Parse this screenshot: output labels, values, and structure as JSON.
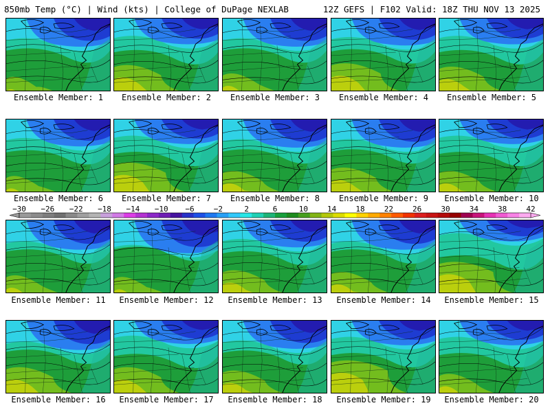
{
  "header": {
    "left": "850mb Temp (°C) | Wind (kts) | College of DuPage NEXLAB",
    "right": "12Z GEFS | F102 Valid: 18Z THU NOV 13 2025"
  },
  "panels": [
    {
      "label": "Ensemble Member: 1",
      "member": 1,
      "cold": 0.5,
      "warm": 0.35
    },
    {
      "label": "Ensemble Member: 2",
      "member": 2,
      "cold": 0.4,
      "warm": 0.7
    },
    {
      "label": "Ensemble Member: 3",
      "member": 3,
      "cold": 0.5,
      "warm": 0.45
    },
    {
      "label": "Ensemble Member: 4",
      "member": 4,
      "cold": 0.45,
      "warm": 0.75
    },
    {
      "label": "Ensemble Member: 5",
      "member": 5,
      "cold": 0.4,
      "warm": 0.65
    },
    {
      "label": "Ensemble Member: 6",
      "member": 6,
      "cold": 0.45,
      "warm": 0.4
    },
    {
      "label": "Ensemble Member: 7",
      "member": 7,
      "cold": 0.35,
      "warm": 0.8
    },
    {
      "label": "Ensemble Member: 8",
      "member": 8,
      "cold": 0.5,
      "warm": 0.55
    },
    {
      "label": "Ensemble Member: 9",
      "member": 9,
      "cold": 0.5,
      "warm": 0.65
    },
    {
      "label": "Ensemble Member: 10",
      "member": 10,
      "cold": 0.35,
      "warm": 0.55
    },
    {
      "label": "Ensemble Member: 11",
      "member": 11,
      "cold": 0.55,
      "warm": 0.45
    },
    {
      "label": "Ensemble Member: 12",
      "member": 12,
      "cold": 0.7,
      "warm": 0.4
    },
    {
      "label": "Ensemble Member: 13",
      "member": 13,
      "cold": 0.45,
      "warm": 0.6
    },
    {
      "label": "Ensemble Member: 14",
      "member": 14,
      "cold": 0.55,
      "warm": 0.55
    },
    {
      "label": "Ensemble Member: 15",
      "member": 15,
      "cold": 0.2,
      "warm": 0.85
    },
    {
      "label": "Ensemble Member: 16",
      "member": 16,
      "cold": 0.55,
      "warm": 0.7
    },
    {
      "label": "Ensemble Member: 17",
      "member": 17,
      "cold": 0.3,
      "warm": 0.7
    },
    {
      "label": "Ensemble Member: 18",
      "member": 18,
      "cold": 0.5,
      "warm": 0.6
    },
    {
      "label": "Ensemble Member: 19",
      "member": 19,
      "cold": 0.35,
      "warm": 0.9
    },
    {
      "label": "Ensemble Member: 20",
      "member": 20,
      "cold": 0.35,
      "warm": 0.5
    }
  ],
  "colorbar": {
    "labels": [
      "−30",
      "−26",
      "−22",
      "−18",
      "−14",
      "−10",
      "−6",
      "−2",
      "2",
      "6",
      "10",
      "14",
      "18",
      "22",
      "26",
      "30",
      "34",
      "38",
      "42"
    ],
    "colors": [
      "#9a9a9a",
      "#8c8c8c",
      "#7e7e7e",
      "#707070",
      "#8a8a8a",
      "#a0a0a0",
      "#b4b4b4",
      "#c8a0dc",
      "#d27ae6",
      "#dc3ce6",
      "#b432d2",
      "#8c28c8",
      "#6e1eb4",
      "#4614a0",
      "#2832c8",
      "#1e50e6",
      "#1e78f0",
      "#28a0f5",
      "#32c8fa",
      "#28e6e6",
      "#20d0b4",
      "#1eb478",
      "#18a03c",
      "#1e8c1e",
      "#46a01e",
      "#82b414",
      "#b4c80a",
      "#dcdc00",
      "#ffff00",
      "#ffd200",
      "#ffaa00",
      "#ff8200",
      "#ff5a00",
      "#f03200",
      "#dc1e1e",
      "#c81414",
      "#b40a0a",
      "#960000",
      "#a00050",
      "#c8147a",
      "#e632b4",
      "#f05ad2",
      "#f882e6",
      "#ffaaf0"
    ]
  }
}
